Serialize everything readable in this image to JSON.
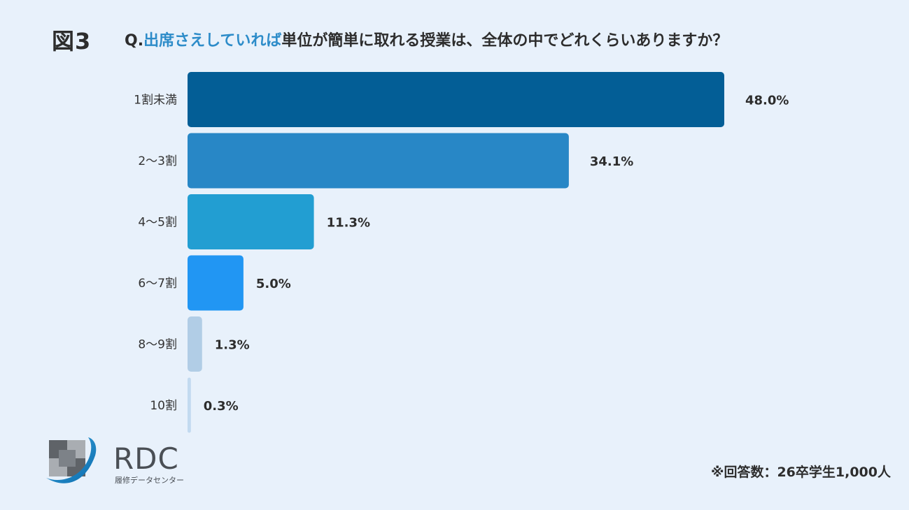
{
  "figure_label": "図3",
  "question": {
    "prefix": "Q.",
    "highlight": "出席さえしていれば",
    "rest": "単位が簡単に取れる授業は、全体の中でどれくらいありますか？"
  },
  "note": "※回答数：26卒学生1,000人",
  "logo": {
    "text": "RDC",
    "subtitle": "履修データセンター",
    "icon": "rdc-checker-logo-icon"
  },
  "colors": {
    "background": "#e8f1fb",
    "highlight": "#2d8cc9",
    "bars": [
      "#035e96",
      "#2887c6",
      "#229ed2",
      "#2196f3",
      "#b1cde6",
      "#c2daf0"
    ]
  },
  "chart_data": {
    "type": "bar",
    "orientation": "horizontal",
    "categories": [
      "1割未満",
      "2～3割",
      "4～5割",
      "6～7割",
      "8～9割",
      "10割"
    ],
    "values": [
      48.0,
      34.1,
      11.3,
      5.0,
      1.3,
      0.3
    ],
    "value_labels": [
      "48.0%",
      "34.1%",
      "11.3%",
      "5.0%",
      "1.3%",
      "0.3%"
    ],
    "xlim": [
      0,
      48.0
    ],
    "grid": false,
    "legend": false
  }
}
